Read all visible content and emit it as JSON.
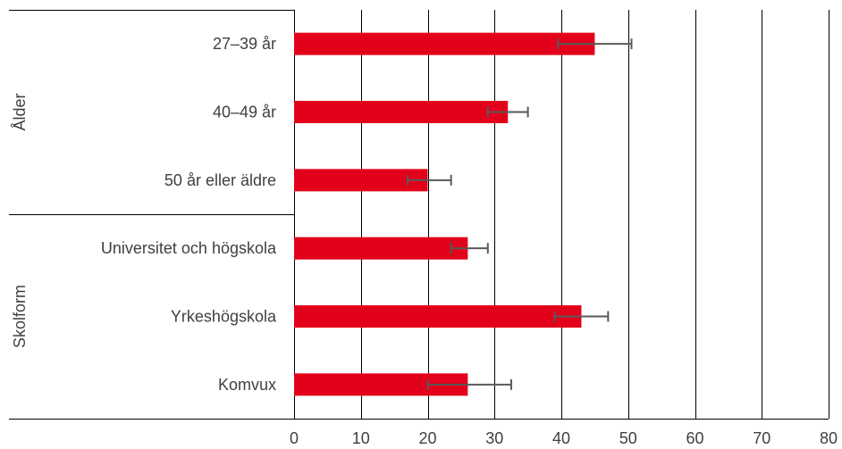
{
  "chart_data": {
    "type": "bar",
    "orientation": "horizontal",
    "groups": [
      {
        "name": "Ålder",
        "categories": [
          "27–39 år",
          "40–49 år",
          "50 år eller äldre"
        ]
      },
      {
        "name": "Skolform",
        "categories": [
          "Universitet och högskola",
          "Yrkeshögskola",
          "Komvux"
        ]
      }
    ],
    "categories": [
      "27–39 år",
      "40–49 år",
      "50 år eller äldre",
      "Universitet och högskola",
      "Yrkeshögskola",
      "Komvux"
    ],
    "values": [
      45,
      32,
      20,
      26,
      43,
      26
    ],
    "error_low": [
      39.5,
      29,
      17,
      23.5,
      39,
      20
    ],
    "error_high": [
      50.5,
      35,
      23.5,
      29,
      47,
      32.5
    ],
    "xlim": [
      0,
      80
    ],
    "xticks": [
      0,
      10,
      20,
      30,
      40,
      50,
      60,
      70,
      80
    ],
    "grid": true,
    "bar_color": "#e2001a",
    "error_color": "#595959"
  }
}
